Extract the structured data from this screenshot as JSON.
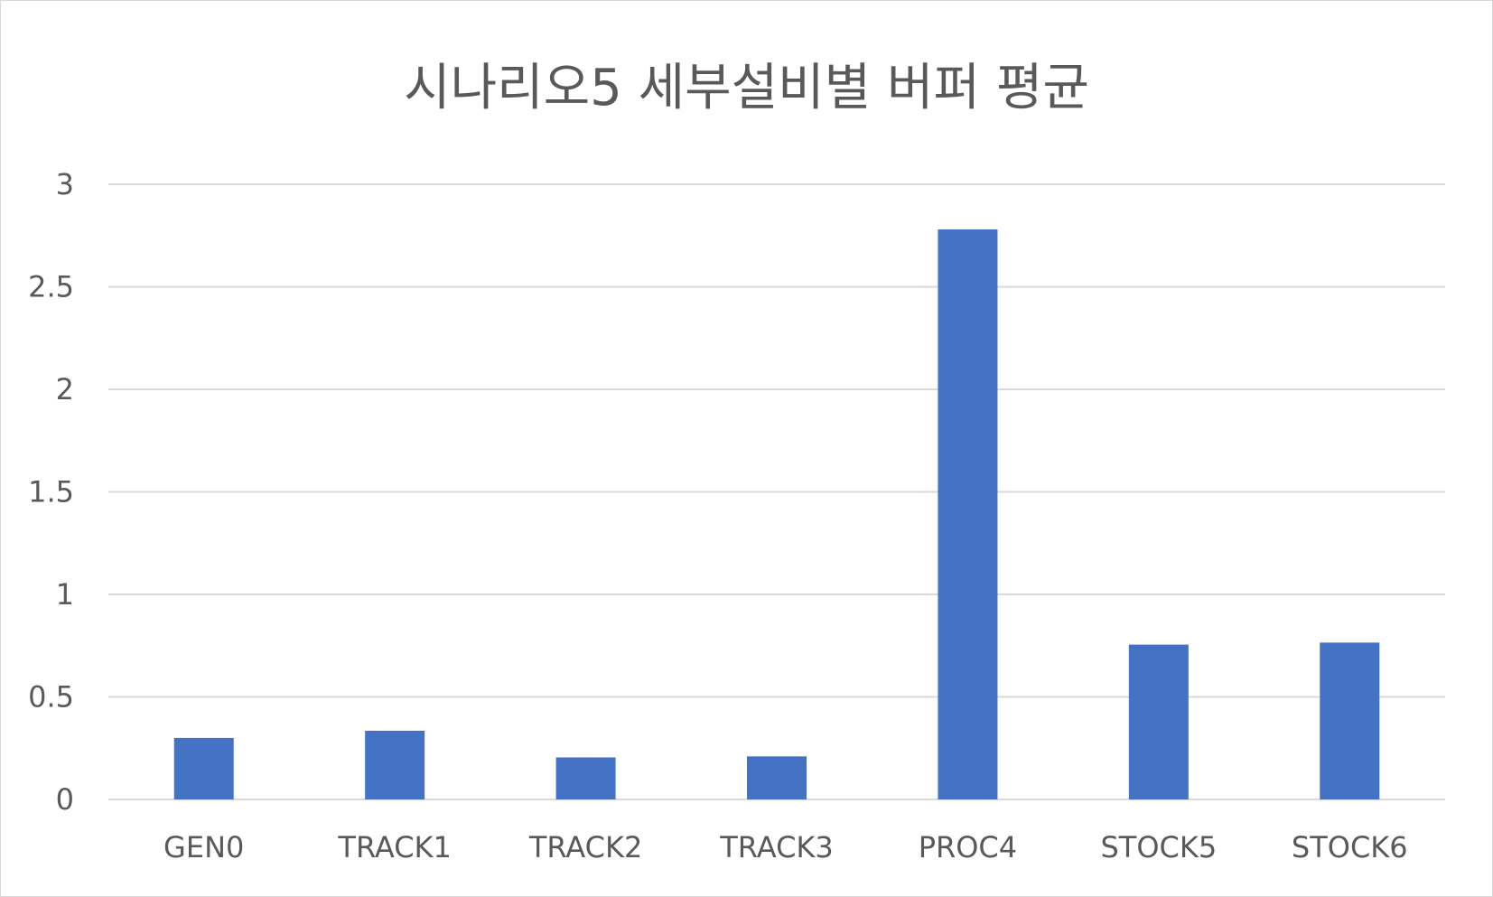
{
  "chart_data": {
    "type": "bar",
    "title": "시나리오5 세부설비별 버퍼 평균",
    "categories": [
      "GEN0",
      "TRACK1",
      "TRACK2",
      "TRACK3",
      "PROC4",
      "STOCK5",
      "STOCK6"
    ],
    "values": [
      0.3,
      0.335,
      0.205,
      0.21,
      2.78,
      0.755,
      0.765
    ],
    "ylim": [
      0,
      3
    ],
    "yticks": [
      "0",
      "0.5",
      "1",
      "1.5",
      "2",
      "2.5",
      "3"
    ],
    "grid": true,
    "bar_color": "#4472C4",
    "grid_color": "#d9d9d9",
    "xlabel": "",
    "ylabel": ""
  }
}
